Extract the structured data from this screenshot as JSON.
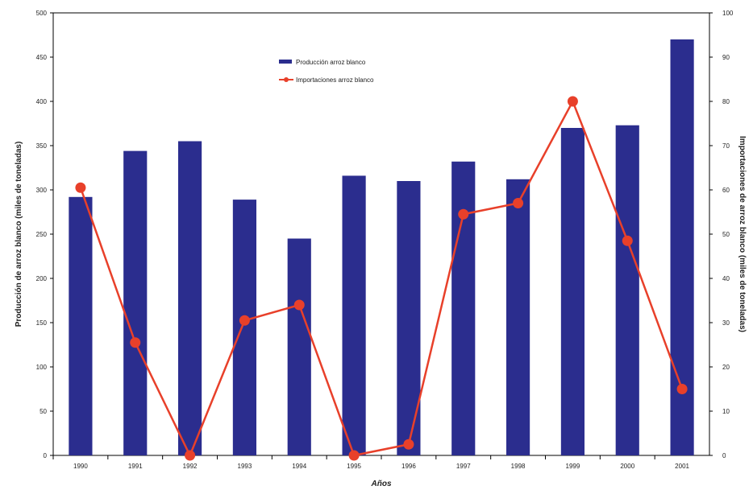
{
  "chart_data": {
    "type": "bar",
    "categories": [
      "1990",
      "1991",
      "1992",
      "1993",
      "1994",
      "1995",
      "1996",
      "1997",
      "1998",
      "1999",
      "2000",
      "2001"
    ],
    "series": [
      {
        "name": "Producción arroz blanco",
        "type": "bar",
        "axis": "left",
        "color": "#2b2d8e",
        "values": [
          292,
          344,
          355,
          289,
          245,
          316,
          310,
          332,
          312,
          370,
          373,
          470
        ]
      },
      {
        "name": "Importaciones arroz blanco",
        "type": "line",
        "axis": "right",
        "color": "#e8402a",
        "values": [
          60.5,
          25.5,
          0,
          30.5,
          34,
          0,
          2.5,
          54.5,
          57,
          80,
          48.5,
          15
        ]
      }
    ],
    "xlabel": "Años",
    "ylabel": "Producción de arroz blanco (miles de toneladas)",
    "y2label": "Importaciones de arroz blanco (miles de toneladas)",
    "ylim": [
      0,
      500
    ],
    "y2lim": [
      0,
      100
    ],
    "yticks": [
      "0",
      "50",
      "100",
      "150",
      "200",
      "250",
      "300",
      "350",
      "400",
      "450",
      "500"
    ],
    "y2ticks": [
      "0",
      "10",
      "20",
      "30",
      "40",
      "50",
      "60",
      "70",
      "80",
      "90",
      "100"
    ],
    "grid": false,
    "legend_position": "top-center"
  }
}
